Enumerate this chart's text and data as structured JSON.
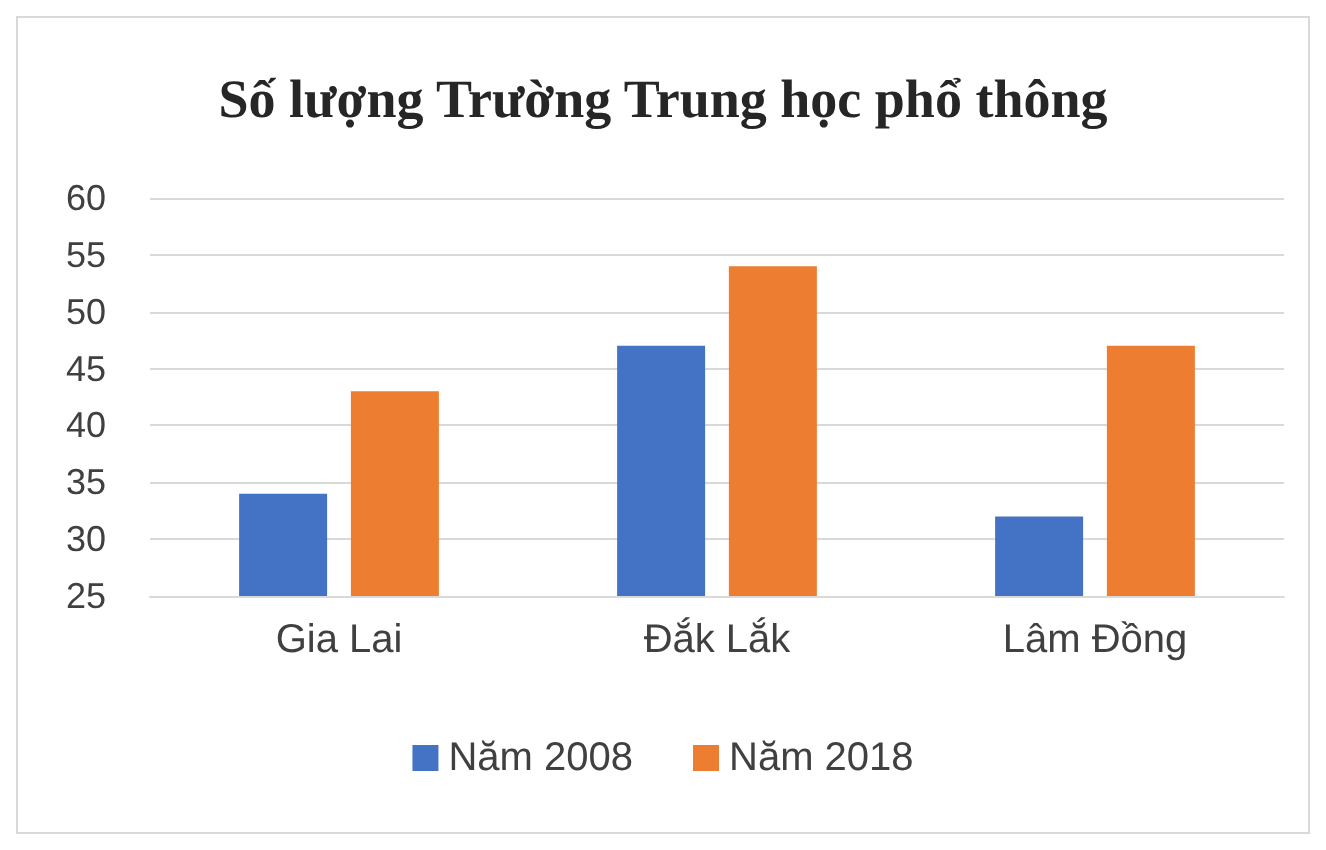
{
  "chart_data": {
    "type": "bar",
    "title": "Số lượng Trường Trung học phổ thông",
    "categories": [
      "Gia Lai",
      "Đắk Lắk",
      "Lâm Đồng"
    ],
    "series": [
      {
        "name": "Năm 2008",
        "color": "#4472c4",
        "values": [
          34,
          47,
          32
        ]
      },
      {
        "name": "Năm 2018",
        "color": "#ed7d31",
        "values": [
          43,
          54,
          47
        ]
      }
    ],
    "ylim": [
      25,
      60
    ],
    "yticks": [
      25,
      30,
      35,
      40,
      45,
      50,
      55,
      60
    ],
    "grid": "y",
    "legend": "bottom"
  }
}
